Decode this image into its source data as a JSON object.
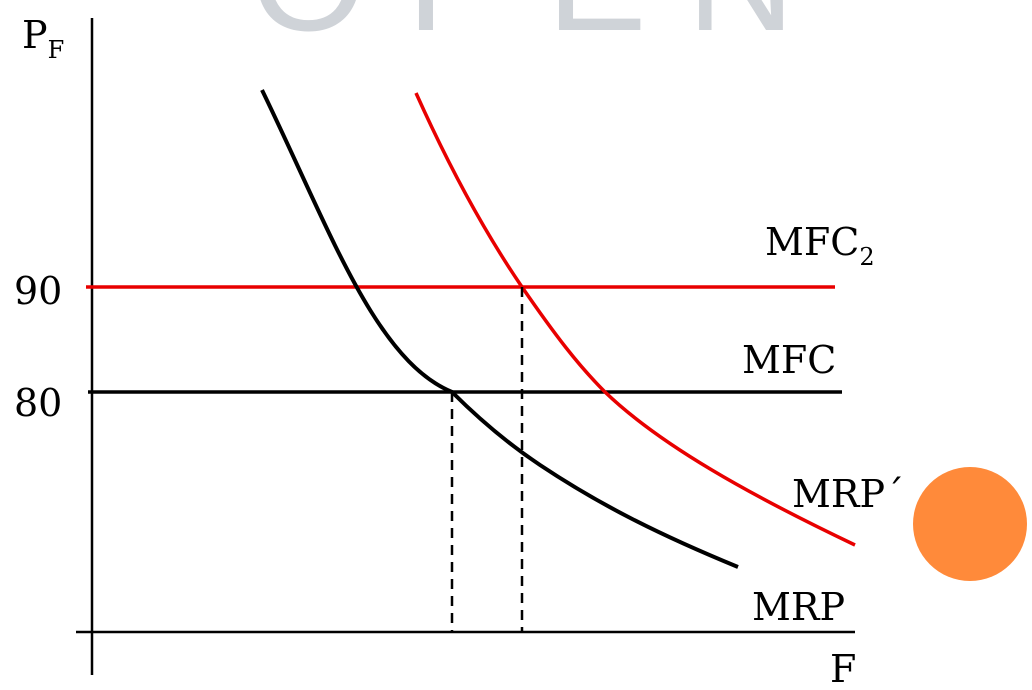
{
  "watermark": "OPEN",
  "axes": {
    "y_main": "P",
    "y_sub": "F",
    "x": "F"
  },
  "ticks": {
    "t90": "90",
    "t80": "80"
  },
  "curves": {
    "mfc2_main": "MFC",
    "mfc2_sub": "2",
    "mfc": "MFC",
    "mrp_prime": "MRP´",
    "mrp": "MRP"
  },
  "colors": {
    "red": "#e80000",
    "black": "#000000",
    "accent_dot": "#ff8a3a"
  }
}
